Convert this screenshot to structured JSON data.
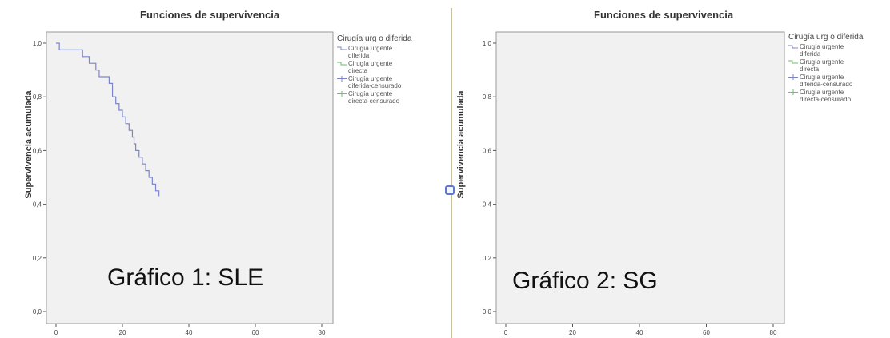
{
  "charts": [
    {
      "title": "Funciones de supervivencia",
      "ylabel": "Supervivencia acumulada",
      "overlay": "Gráfico 1: SLE",
      "legend_title": "Cirugía urg o diferida",
      "legend": [
        "Cirugía urgente diferida",
        "Cirugía urgente directa",
        "Cirugía urgente diferida-censurado",
        "Cirugía urgente directa-censurado"
      ]
    },
    {
      "title": "Funciones de supervivencia",
      "ylabel": "Supervivencia acumulada",
      "overlay": "Gráfico 2: SG",
      "legend_title": "Cirugía urg o diferida",
      "legend": [
        "Cirugía urgente diferida",
        "Cirugía urgente directa",
        "Cirugía urgente diferida-censurado",
        "Cirugía urgente directa-censurado"
      ]
    }
  ],
  "chart_data": [
    {
      "type": "line",
      "title": "Funciones de supervivencia",
      "xlabel": "",
      "ylabel": "Supervivencia acumulada",
      "xlim": [
        0,
        80
      ],
      "ylim": [
        0,
        1.0
      ],
      "xticks": [
        "0",
        "20",
        "40",
        "60",
        "80"
      ],
      "yticks": [
        "0,0",
        "0,2",
        "0,4",
        "0,6",
        "0,8",
        "1,0"
      ],
      "grid": false,
      "legend_title": "Cirugía urg o diferida",
      "legend_position": "right",
      "series": [
        {
          "name": "Cirugía urgente diferida",
          "color": "#7b86c9",
          "steps": [
            [
              0,
              1.0
            ],
            [
              1,
              0.975
            ],
            [
              8,
              0.95
            ],
            [
              10,
              0.925
            ],
            [
              12,
              0.9
            ],
            [
              13,
              0.875
            ],
            [
              16,
              0.85
            ],
            [
              17,
              0.8
            ],
            [
              18,
              0.775
            ],
            [
              19,
              0.75
            ],
            [
              20,
              0.725
            ],
            [
              21,
              0.7
            ],
            [
              22,
              0.675
            ],
            [
              23,
              0.65
            ],
            [
              23.5,
              0.625
            ],
            [
              24,
              0.6
            ],
            [
              25,
              0.575
            ],
            [
              26,
              0.55
            ],
            [
              27,
              0.525
            ],
            [
              28,
              0.5
            ],
            [
              29,
              0.475
            ],
            [
              30,
              0.45
            ],
            [
              31,
              0.43
            ]
          ],
          "censored": []
        }
      ]
    }
  ]
}
